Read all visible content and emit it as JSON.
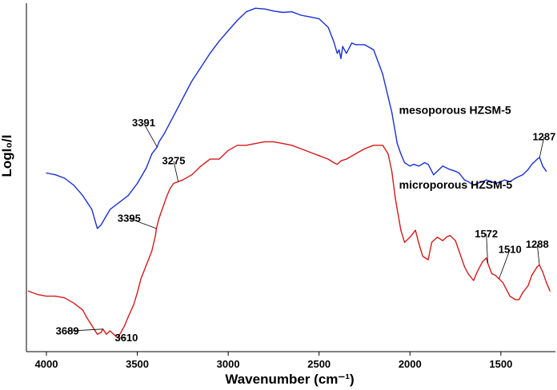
{
  "chart_data": {
    "type": "line",
    "xlabel": "Wavenumber (cm⁻¹)",
    "ylabel": "LogI₀/I",
    "x_reversed": true,
    "xlim": [
      4110,
      1200
    ],
    "ylim": [
      0,
      10
    ],
    "x_ticks": [
      4000,
      3500,
      3000,
      2500,
      2000,
      1500
    ],
    "x_tick_labels": [
      "4000",
      "3500",
      "3000",
      "2500",
      "2000",
      "1500"
    ],
    "y_ticks_shown": false,
    "grid": false,
    "series": [
      {
        "name": "mesoporous HZSM-5",
        "color": "#1a2fd6",
        "x": [
          4000,
          3950,
          3900,
          3850,
          3800,
          3750,
          3720,
          3700,
          3650,
          3600,
          3550,
          3500,
          3450,
          3420,
          3391,
          3380,
          3350,
          3300,
          3250,
          3200,
          3150,
          3100,
          3050,
          3000,
          2950,
          2900,
          2850,
          2800,
          2750,
          2700,
          2650,
          2600,
          2550,
          2500,
          2450,
          2420,
          2400,
          2390,
          2380,
          2370,
          2350,
          2320,
          2300,
          2250,
          2200,
          2150,
          2100,
          2070,
          2050,
          2030,
          2000,
          1980,
          1950,
          1920,
          1900,
          1870,
          1850,
          1820,
          1800,
          1780,
          1750,
          1730,
          1700,
          1680,
          1650,
          1630,
          1600,
          1580,
          1550,
          1530,
          1500,
          1480,
          1450,
          1420,
          1400,
          1380,
          1350,
          1330,
          1300,
          1287,
          1270,
          1250
        ],
        "values": [
          5.15,
          5.1,
          5.0,
          4.8,
          4.5,
          4.1,
          3.55,
          3.65,
          4.1,
          4.3,
          4.5,
          4.85,
          5.3,
          5.7,
          5.9,
          6.05,
          6.3,
          6.8,
          7.3,
          7.8,
          8.2,
          8.6,
          8.95,
          9.25,
          9.55,
          9.8,
          9.9,
          9.88,
          9.82,
          9.78,
          9.8,
          9.7,
          9.65,
          9.6,
          9.35,
          8.95,
          8.6,
          8.7,
          8.45,
          8.8,
          8.6,
          8.9,
          8.85,
          8.85,
          8.7,
          8.0,
          6.9,
          6.0,
          5.7,
          5.45,
          5.35,
          5.4,
          5.35,
          5.45,
          5.4,
          5.1,
          5.2,
          5.35,
          5.3,
          5.25,
          5.2,
          5.15,
          4.95,
          4.9,
          4.8,
          4.85,
          4.9,
          4.95,
          4.9,
          4.85,
          4.9,
          4.95,
          4.9,
          5.0,
          5.05,
          5.1,
          5.25,
          5.4,
          5.55,
          5.6,
          5.35,
          5.2
        ]
      },
      {
        "name": "microporous HZSM-5",
        "color": "#d41a1a",
        "x": [
          4100,
          4050,
          4000,
          3950,
          3900,
          3850,
          3800,
          3780,
          3750,
          3720,
          3700,
          3689,
          3670,
          3650,
          3630,
          3610,
          3590,
          3570,
          3550,
          3520,
          3500,
          3480,
          3450,
          3420,
          3400,
          3395,
          3380,
          3360,
          3340,
          3320,
          3300,
          3275,
          3250,
          3200,
          3150,
          3100,
          3050,
          3000,
          2950,
          2900,
          2850,
          2800,
          2750,
          2700,
          2650,
          2600,
          2550,
          2500,
          2450,
          2420,
          2400,
          2380,
          2350,
          2300,
          2250,
          2200,
          2150,
          2120,
          2100,
          2080,
          2050,
          2030,
          2000,
          1970,
          1950,
          1930,
          1900,
          1880,
          1850,
          1820,
          1800,
          1780,
          1750,
          1730,
          1700,
          1680,
          1650,
          1630,
          1600,
          1580,
          1572,
          1550,
          1530,
          1510,
          1490,
          1470,
          1450,
          1420,
          1400,
          1380,
          1350,
          1330,
          1300,
          1288,
          1270,
          1250,
          1230
        ],
        "values": [
          1.75,
          1.65,
          1.6,
          1.6,
          1.55,
          1.4,
          1.2,
          1.0,
          0.75,
          0.5,
          0.55,
          0.65,
          0.5,
          0.6,
          0.5,
          0.4,
          0.55,
          0.75,
          1.0,
          1.35,
          1.7,
          2.1,
          2.5,
          2.9,
          3.35,
          3.55,
          3.85,
          4.15,
          4.45,
          4.7,
          4.85,
          4.9,
          4.95,
          5.1,
          5.35,
          5.55,
          5.55,
          5.8,
          5.95,
          5.95,
          6.0,
          6.05,
          6.05,
          6.0,
          5.95,
          5.85,
          5.75,
          5.65,
          5.55,
          5.45,
          5.4,
          5.5,
          5.55,
          5.7,
          5.85,
          5.95,
          5.95,
          5.7,
          5.2,
          4.4,
          3.5,
          3.15,
          3.3,
          3.5,
          3.1,
          2.75,
          2.65,
          3.15,
          3.3,
          3.2,
          3.3,
          3.35,
          3.2,
          2.9,
          2.45,
          2.25,
          2.05,
          2.3,
          2.6,
          2.7,
          2.55,
          2.25,
          2.2,
          2.1,
          2.0,
          1.8,
          1.6,
          1.5,
          1.5,
          1.7,
          1.9,
          2.2,
          2.45,
          2.5,
          2.3,
          2.0,
          1.75
        ]
      }
    ],
    "series_labels": [
      {
        "text": "mesoporous HZSM-5",
        "x": 2060,
        "y": 6.85
      },
      {
        "text": "microporous HZSM-5",
        "x": 2060,
        "y": 4.7
      }
    ],
    "annotations": [
      {
        "text": "3391",
        "x": 3391,
        "y": 5.9,
        "series": 0,
        "label_x": 3465,
        "label_y": 6.5
      },
      {
        "text": "1287",
        "x": 1287,
        "y": 5.6,
        "series": 0,
        "label_x": 1262,
        "label_y": 6.1
      },
      {
        "text": "3275",
        "x": 3275,
        "y": 4.9,
        "series": 1,
        "label_x": 3300,
        "label_y": 5.4
      },
      {
        "text": "3395",
        "x": 3395,
        "y": 3.55,
        "series": 1,
        "label_x": 3545,
        "label_y": 3.75
      },
      {
        "text": "3689",
        "x": 3689,
        "y": 0.65,
        "series": 1,
        "label_x": 3885,
        "label_y": 0.5
      },
      {
        "text": "3610",
        "x": 3610,
        "y": 0.4,
        "series": 1,
        "label_x": 3560,
        "label_y": 0.3
      },
      {
        "text": "1572",
        "x": 1572,
        "y": 2.55,
        "series": 1,
        "label_x": 1580,
        "label_y": 3.3
      },
      {
        "text": "1510",
        "x": 1510,
        "y": 2.1,
        "series": 1,
        "label_x": 1450,
        "label_y": 2.85
      },
      {
        "text": "1288",
        "x": 1288,
        "y": 2.5,
        "series": 1,
        "label_x": 1300,
        "label_y": 3.0
      }
    ]
  }
}
